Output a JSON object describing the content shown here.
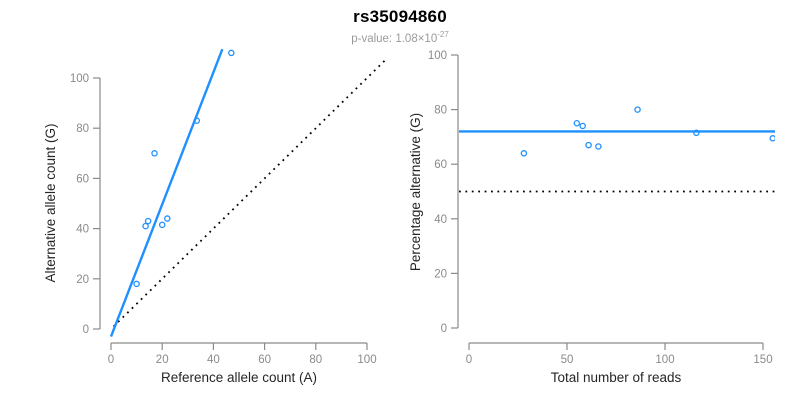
{
  "header": {
    "title": "rs35094860",
    "p_value_label": "p-value: 1.08×10",
    "p_value_exponent": "-27"
  },
  "colors": {
    "accent": "#1e90ff",
    "axis": "#8a8a8a",
    "tick_label": "#8a8a8a",
    "axis_title": "#262626",
    "dotted_line": "#000000",
    "background": "#ffffff"
  },
  "chart_data": [
    {
      "type": "scatter",
      "title": "",
      "xlabel": "Reference allele count (A)",
      "ylabel": "Alternative allele count (G)",
      "xlim": [
        0,
        100
      ],
      "ylim": [
        0,
        100
      ],
      "xticks": [
        0,
        20,
        40,
        60,
        80,
        100
      ],
      "yticks": [
        0,
        20,
        40,
        60,
        80,
        100
      ],
      "grid": false,
      "legend": null,
      "points": [
        [
          10,
          18
        ],
        [
          13.5,
          41
        ],
        [
          14.5,
          43
        ],
        [
          17,
          70
        ],
        [
          20,
          41.5
        ],
        [
          22,
          44
        ],
        [
          33.5,
          83
        ],
        [
          47,
          110
        ]
      ],
      "fit_line": {
        "kind": "segment",
        "from": [
          0,
          -3
        ],
        "to": [
          43.5,
          111.5
        ],
        "style": "solid"
      },
      "reference_line": {
        "kind": "segment",
        "from": [
          1,
          1
        ],
        "to": [
          108,
          108
        ],
        "style": "dotted",
        "meaning": "identity y=x"
      }
    },
    {
      "type": "scatter",
      "title": "",
      "xlabel": "Total number of reads",
      "ylabel": "Percentage alternative (G)",
      "xlim": [
        0,
        150
      ],
      "ylim": [
        0,
        100
      ],
      "xticks": [
        0,
        50,
        100,
        150
      ],
      "yticks": [
        0,
        20,
        40,
        60,
        80,
        100
      ],
      "grid": false,
      "legend": null,
      "points": [
        [
          28,
          64
        ],
        [
          55,
          75
        ],
        [
          58,
          74
        ],
        [
          61,
          67
        ],
        [
          66,
          66.5
        ],
        [
          86,
          80
        ],
        [
          116,
          71.5
        ],
        [
          155,
          69.5
        ]
      ],
      "fit_line": {
        "kind": "hline",
        "y": 72,
        "style": "solid"
      },
      "reference_line": {
        "kind": "hline",
        "y": 50,
        "style": "dotted",
        "meaning": "50% reference"
      }
    }
  ]
}
